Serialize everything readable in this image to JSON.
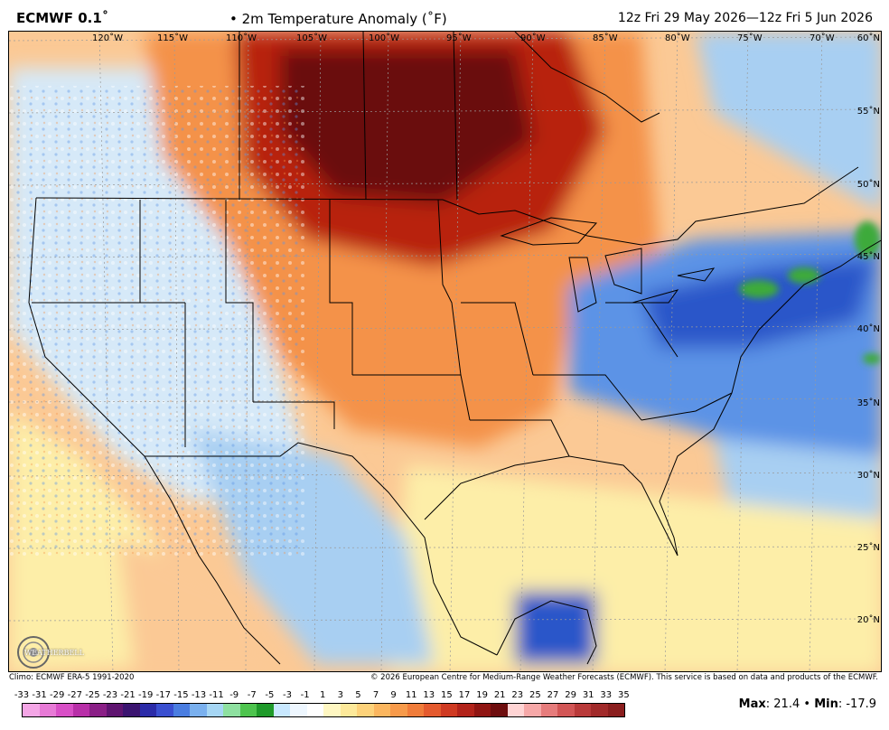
{
  "header": {
    "model": "ECMWF 0.1˚",
    "product": "• 2m Temperature Anomaly (˚F)",
    "valid": "12z Fri 29 May 2026—12z Fri 5 Jun 2026"
  },
  "map": {
    "lon_labels": [
      "120˚W",
      "115˚W",
      "110˚W",
      "105˚W",
      "100˚W",
      "95˚W",
      "90˚W",
      "85˚W",
      "80˚W",
      "75˚W",
      "70˚W"
    ],
    "lat_labels": [
      "60˚N",
      "55˚N",
      "50˚N",
      "45˚N",
      "40˚N",
      "35˚N",
      "30˚N",
      "25˚N",
      "20˚N"
    ],
    "colors": {
      "deep_red": "#6b0d0d",
      "red": "#b8220f",
      "orange": "#f4924a",
      "light_orange": "#fbc995",
      "pale_yellow": "#fdeea8",
      "white": "#ffffff",
      "pale_blue": "#d6e9f8",
      "light_blue": "#a8cff2",
      "blue": "#5b93e6",
      "dark_blue": "#2a56c9",
      "green": "#3daa3a"
    }
  },
  "logo": {
    "text": "WEATHERBELL"
  },
  "footer": {
    "climo": "Climo: ECMWF ERA-5 1991-2020",
    "copyright": "© 2026 European Centre for Medium-Range Weather Forecasts (ECMWF). This service is based on data and products of the ECMWF."
  },
  "legend": {
    "labels": [
      "-33",
      "-31",
      "-29",
      "-27",
      "-25",
      "-23",
      "-21",
      "-19",
      "-17",
      "-15",
      "-13",
      "-11",
      "-9",
      "-7",
      "-5",
      "-3",
      "-1",
      "1",
      "3",
      "5",
      "7",
      "9",
      "11",
      "13",
      "15",
      "17",
      "19",
      "21",
      "23",
      "25",
      "27",
      "29",
      "31",
      "33",
      "35"
    ],
    "colors": [
      "#f4a6e6",
      "#e77ad6",
      "#d84fc6",
      "#b82fa8",
      "#8a1f86",
      "#5f1470",
      "#3b1470",
      "#2b2ba8",
      "#3a4fd0",
      "#4a7de0",
      "#7ab0ee",
      "#a6d6f4",
      "#8ee0a0",
      "#4ec44e",
      "#1f9a2a",
      "#c8e8ff",
      "#eef7ff",
      "#ffffff",
      "#fff7c2",
      "#fde99a",
      "#fdd27a",
      "#fbb65f",
      "#f79a4a",
      "#f07c3a",
      "#e45a2e",
      "#cf3a22",
      "#b2231a",
      "#8f1512",
      "#6e0d0e",
      "#ffd4d4",
      "#f6a8a8",
      "#e67c7c",
      "#d25656",
      "#b93a3a",
      "#a12a2a",
      "#8a1e1e"
    ]
  },
  "stats": {
    "max_label": "Max",
    "max_value": "21.4",
    "sep": "•",
    "min_label": "Min",
    "min_value": "-17.9"
  }
}
